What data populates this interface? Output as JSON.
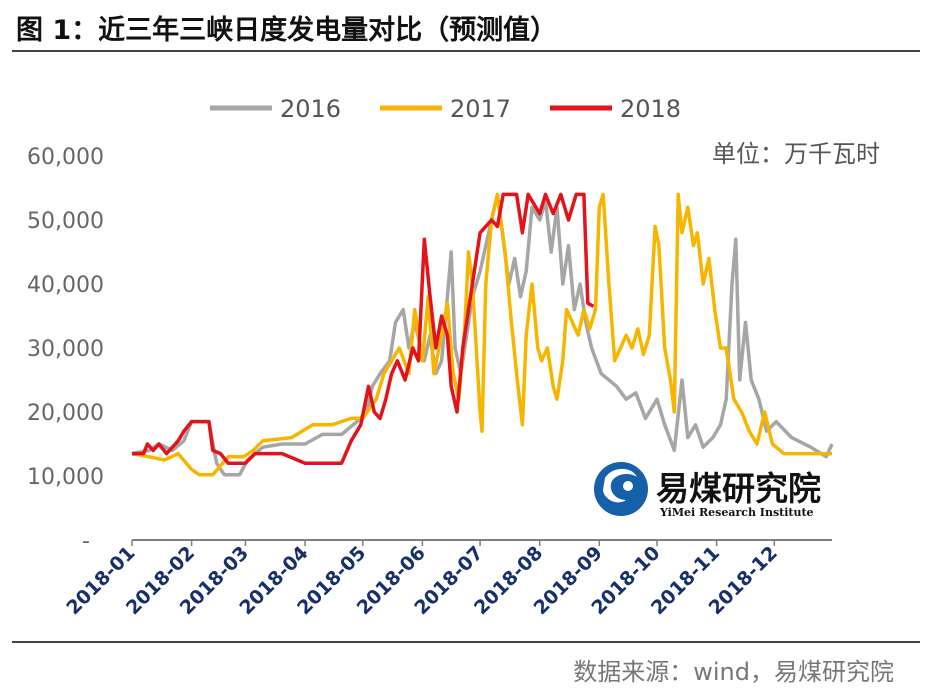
{
  "title": "图 1：近三年三峡日度发电量对比（预测值）",
  "source": "数据来源：wind，易煤研究院",
  "unit_label": "单位：万千瓦时",
  "logo": {
    "name_cn": "易煤研究院",
    "name_en": "YiMei Research Institute"
  },
  "colors": {
    "2016": "#a6a6a6",
    "2017": "#f7b500",
    "2018": "#e3121b",
    "axis": "#7f7f7f"
  },
  "chart_data": {
    "type": "line",
    "x_axis": "date",
    "x_tick_labels": [
      "2018-01",
      "2018-02",
      "2018-03",
      "2018-04",
      "2018-05",
      "2018-06",
      "2018-07",
      "2018-08",
      "2018-09",
      "2018-10",
      "2018-11",
      "2018-12"
    ],
    "y_tick_labels": [
      "-",
      "10,000",
      "20,000",
      "30,000",
      "40,000",
      "50,000",
      "60,000"
    ],
    "ylim": [
      0,
      60000
    ],
    "xlim": [
      "2018-01-01",
      "2018-12-31"
    ],
    "legend_position": "top",
    "grid": false,
    "series": [
      {
        "name": "2016",
        "points": [
          [
            "2018-01-01",
            13500
          ],
          [
            "2018-01-10",
            14000
          ],
          [
            "2018-01-15",
            15000
          ],
          [
            "2018-01-22",
            14000
          ],
          [
            "2018-01-28",
            15500
          ],
          [
            "2018-02-01",
            18500
          ],
          [
            "2018-02-10",
            18500
          ],
          [
            "2018-02-14",
            12000
          ],
          [
            "2018-02-18",
            10200
          ],
          [
            "2018-02-26",
            10200
          ],
          [
            "2018-03-02",
            12500
          ],
          [
            "2018-03-10",
            14500
          ],
          [
            "2018-03-20",
            15000
          ],
          [
            "2018-04-01",
            15000
          ],
          [
            "2018-04-10",
            16500
          ],
          [
            "2018-04-20",
            16500
          ],
          [
            "2018-04-28",
            18500
          ],
          [
            "2018-05-03",
            20000
          ],
          [
            "2018-05-06",
            24000
          ],
          [
            "2018-05-10",
            26000
          ],
          [
            "2018-05-15",
            28000
          ],
          [
            "2018-05-18",
            34000
          ],
          [
            "2018-05-22",
            36000
          ],
          [
            "2018-05-25",
            30000
          ],
          [
            "2018-05-28",
            34000
          ],
          [
            "2018-06-02",
            28000
          ],
          [
            "2018-06-05",
            32000
          ],
          [
            "2018-06-08",
            26000
          ],
          [
            "2018-06-11",
            28000
          ],
          [
            "2018-06-14",
            38000
          ],
          [
            "2018-06-16",
            45000
          ],
          [
            "2018-06-18",
            30000
          ],
          [
            "2018-06-21",
            26000
          ],
          [
            "2018-06-24",
            32000
          ],
          [
            "2018-06-27",
            38000
          ],
          [
            "2018-07-01",
            42000
          ],
          [
            "2018-07-04",
            46000
          ],
          [
            "2018-07-07",
            50000
          ],
          [
            "2018-07-10",
            54000
          ],
          [
            "2018-07-13",
            47000
          ],
          [
            "2018-07-16",
            40000
          ],
          [
            "2018-07-19",
            44000
          ],
          [
            "2018-07-22",
            38000
          ],
          [
            "2018-07-25",
            42000
          ],
          [
            "2018-07-28",
            52000
          ],
          [
            "2018-08-01",
            50000
          ],
          [
            "2018-08-04",
            53000
          ],
          [
            "2018-08-07",
            45000
          ],
          [
            "2018-08-10",
            52000
          ],
          [
            "2018-08-13",
            40000
          ],
          [
            "2018-08-16",
            46000
          ],
          [
            "2018-08-19",
            36000
          ],
          [
            "2018-08-22",
            40000
          ],
          [
            "2018-08-25",
            34000
          ],
          [
            "2018-08-28",
            30000
          ],
          [
            "2018-09-02",
            26000
          ],
          [
            "2018-09-06",
            25000
          ],
          [
            "2018-09-10",
            24000
          ],
          [
            "2018-09-15",
            22000
          ],
          [
            "2018-09-20",
            23000
          ],
          [
            "2018-09-25",
            19000
          ],
          [
            "2018-10-01",
            22000
          ],
          [
            "2018-10-05",
            18000
          ],
          [
            "2018-10-10",
            14000
          ],
          [
            "2018-10-14",
            25000
          ],
          [
            "2018-10-17",
            16000
          ],
          [
            "2018-10-21",
            18000
          ],
          [
            "2018-10-25",
            14500
          ],
          [
            "2018-10-30",
            16000
          ],
          [
            "2018-11-03",
            18000
          ],
          [
            "2018-11-06",
            22000
          ],
          [
            "2018-11-09",
            40000
          ],
          [
            "2018-11-11",
            47000
          ],
          [
            "2018-11-13",
            25000
          ],
          [
            "2018-11-16",
            34000
          ],
          [
            "2018-11-19",
            25000
          ],
          [
            "2018-11-23",
            22000
          ],
          [
            "2018-11-27",
            17000
          ],
          [
            "2018-12-02",
            18500
          ],
          [
            "2018-12-10",
            16000
          ],
          [
            "2018-12-20",
            14500
          ],
          [
            "2018-12-28",
            13000
          ],
          [
            "2018-12-31",
            15000
          ]
        ]
      },
      {
        "name": "2017",
        "points": [
          [
            "2018-01-01",
            13500
          ],
          [
            "2018-01-10",
            13000
          ],
          [
            "2018-01-18",
            12500
          ],
          [
            "2018-01-25",
            13500
          ],
          [
            "2018-02-01",
            11000
          ],
          [
            "2018-02-05",
            10200
          ],
          [
            "2018-02-12",
            10200
          ],
          [
            "2018-02-20",
            13000
          ],
          [
            "2018-02-28",
            13000
          ],
          [
            "2018-03-05",
            14000
          ],
          [
            "2018-03-10",
            15500
          ],
          [
            "2018-03-25",
            16000
          ],
          [
            "2018-04-05",
            18000
          ],
          [
            "2018-04-15",
            18000
          ],
          [
            "2018-04-25",
            19000
          ],
          [
            "2018-05-01",
            19000
          ],
          [
            "2018-05-08",
            22000
          ],
          [
            "2018-05-12",
            26000
          ],
          [
            "2018-05-16",
            28000
          ],
          [
            "2018-05-20",
            30000
          ],
          [
            "2018-05-25",
            26000
          ],
          [
            "2018-05-28",
            36000
          ],
          [
            "2018-06-01",
            28000
          ],
          [
            "2018-06-04",
            38000
          ],
          [
            "2018-06-07",
            26000
          ],
          [
            "2018-06-11",
            32000
          ],
          [
            "2018-06-14",
            37000
          ],
          [
            "2018-06-17",
            26000
          ],
          [
            "2018-06-20",
            22000
          ],
          [
            "2018-06-23",
            33000
          ],
          [
            "2018-06-25",
            45000
          ],
          [
            "2018-06-27",
            40000
          ],
          [
            "2018-07-01",
            20000
          ],
          [
            "2018-07-02",
            17000
          ],
          [
            "2018-07-04",
            40000
          ],
          [
            "2018-07-07",
            50000
          ],
          [
            "2018-07-10",
            54000
          ],
          [
            "2018-07-14",
            45000
          ],
          [
            "2018-07-17",
            35000
          ],
          [
            "2018-07-20",
            26000
          ],
          [
            "2018-07-23",
            18000
          ],
          [
            "2018-07-25",
            32000
          ],
          [
            "2018-07-28",
            40000
          ],
          [
            "2018-07-31",
            30000
          ],
          [
            "2018-08-02",
            28000
          ],
          [
            "2018-08-05",
            30000
          ],
          [
            "2018-08-08",
            24000
          ],
          [
            "2018-08-10",
            22000
          ],
          [
            "2018-08-13",
            28000
          ],
          [
            "2018-08-15",
            36000
          ],
          [
            "2018-08-18",
            34000
          ],
          [
            "2018-08-21",
            32000
          ],
          [
            "2018-08-24",
            36000
          ],
          [
            "2018-08-27",
            33000
          ],
          [
            "2018-08-30",
            36000
          ],
          [
            "2018-09-01",
            52000
          ],
          [
            "2018-09-03",
            54000
          ],
          [
            "2018-09-06",
            40000
          ],
          [
            "2018-09-09",
            28000
          ],
          [
            "2018-09-12",
            30000
          ],
          [
            "2018-09-15",
            32000
          ],
          [
            "2018-09-18",
            30000
          ],
          [
            "2018-09-21",
            33000
          ],
          [
            "2018-09-24",
            29000
          ],
          [
            "2018-09-27",
            32000
          ],
          [
            "2018-09-30",
            49000
          ],
          [
            "2018-10-02",
            46000
          ],
          [
            "2018-10-05",
            30000
          ],
          [
            "2018-10-08",
            25000
          ],
          [
            "2018-10-10",
            20000
          ],
          [
            "2018-10-12",
            54000
          ],
          [
            "2018-10-14",
            48000
          ],
          [
            "2018-10-17",
            52000
          ],
          [
            "2018-10-20",
            46000
          ],
          [
            "2018-10-22",
            48000
          ],
          [
            "2018-10-25",
            40000
          ],
          [
            "2018-10-28",
            44000
          ],
          [
            "2018-10-31",
            36000
          ],
          [
            "2018-11-03",
            30000
          ],
          [
            "2018-11-06",
            30000
          ],
          [
            "2018-11-10",
            22000
          ],
          [
            "2018-11-14",
            20000
          ],
          [
            "2018-11-18",
            17000
          ],
          [
            "2018-11-22",
            15000
          ],
          [
            "2018-11-26",
            20000
          ],
          [
            "2018-11-30",
            15000
          ],
          [
            "2018-12-06",
            13500
          ],
          [
            "2018-12-15",
            13500
          ],
          [
            "2018-12-25",
            13500
          ],
          [
            "2018-12-31",
            13500
          ]
        ]
      },
      {
        "name": "2018",
        "points": [
          [
            "2018-01-01",
            13500
          ],
          [
            "2018-01-07",
            13500
          ],
          [
            "2018-01-09",
            15000
          ],
          [
            "2018-01-12",
            14000
          ],
          [
            "2018-01-15",
            15000
          ],
          [
            "2018-01-19",
            13500
          ],
          [
            "2018-01-25",
            15500
          ],
          [
            "2018-01-28",
            17000
          ],
          [
            "2018-02-01",
            18500
          ],
          [
            "2018-02-10",
            18500
          ],
          [
            "2018-02-12",
            14000
          ],
          [
            "2018-02-16",
            13500
          ],
          [
            "2018-02-20",
            12000
          ],
          [
            "2018-03-01",
            12000
          ],
          [
            "2018-03-06",
            13500
          ],
          [
            "2018-03-20",
            13500
          ],
          [
            "2018-04-01",
            12000
          ],
          [
            "2018-04-20",
            12000
          ],
          [
            "2018-04-25",
            15500
          ],
          [
            "2018-04-30",
            18000
          ],
          [
            "2018-05-04",
            24000
          ],
          [
            "2018-05-07",
            20000
          ],
          [
            "2018-05-10",
            19000
          ],
          [
            "2018-05-13",
            22000
          ],
          [
            "2018-05-16",
            26000
          ],
          [
            "2018-05-19",
            28000
          ],
          [
            "2018-05-23",
            25000
          ],
          [
            "2018-05-27",
            30000
          ],
          [
            "2018-05-30",
            28000
          ],
          [
            "2018-06-02",
            47000
          ],
          [
            "2018-06-05",
            38000
          ],
          [
            "2018-06-08",
            30000
          ],
          [
            "2018-06-11",
            35000
          ],
          [
            "2018-06-14",
            32000
          ],
          [
            "2018-06-16",
            24000
          ],
          [
            "2018-06-19",
            20000
          ],
          [
            "2018-06-22",
            30000
          ],
          [
            "2018-06-25",
            36000
          ],
          [
            "2018-06-28",
            42000
          ],
          [
            "2018-07-01",
            48000
          ],
          [
            "2018-07-04",
            49000
          ],
          [
            "2018-07-07",
            50000
          ],
          [
            "2018-07-10",
            49000
          ],
          [
            "2018-07-13",
            54000
          ],
          [
            "2018-07-20",
            54000
          ],
          [
            "2018-07-23",
            48000
          ],
          [
            "2018-07-26",
            54000
          ],
          [
            "2018-08-01",
            51000
          ],
          [
            "2018-08-04",
            54000
          ],
          [
            "2018-08-08",
            51000
          ],
          [
            "2018-08-12",
            54000
          ],
          [
            "2018-08-16",
            50000
          ],
          [
            "2018-08-20",
            54000
          ],
          [
            "2018-08-24",
            54000
          ],
          [
            "2018-08-26",
            37000
          ],
          [
            "2018-08-29",
            36500
          ]
        ]
      }
    ]
  }
}
